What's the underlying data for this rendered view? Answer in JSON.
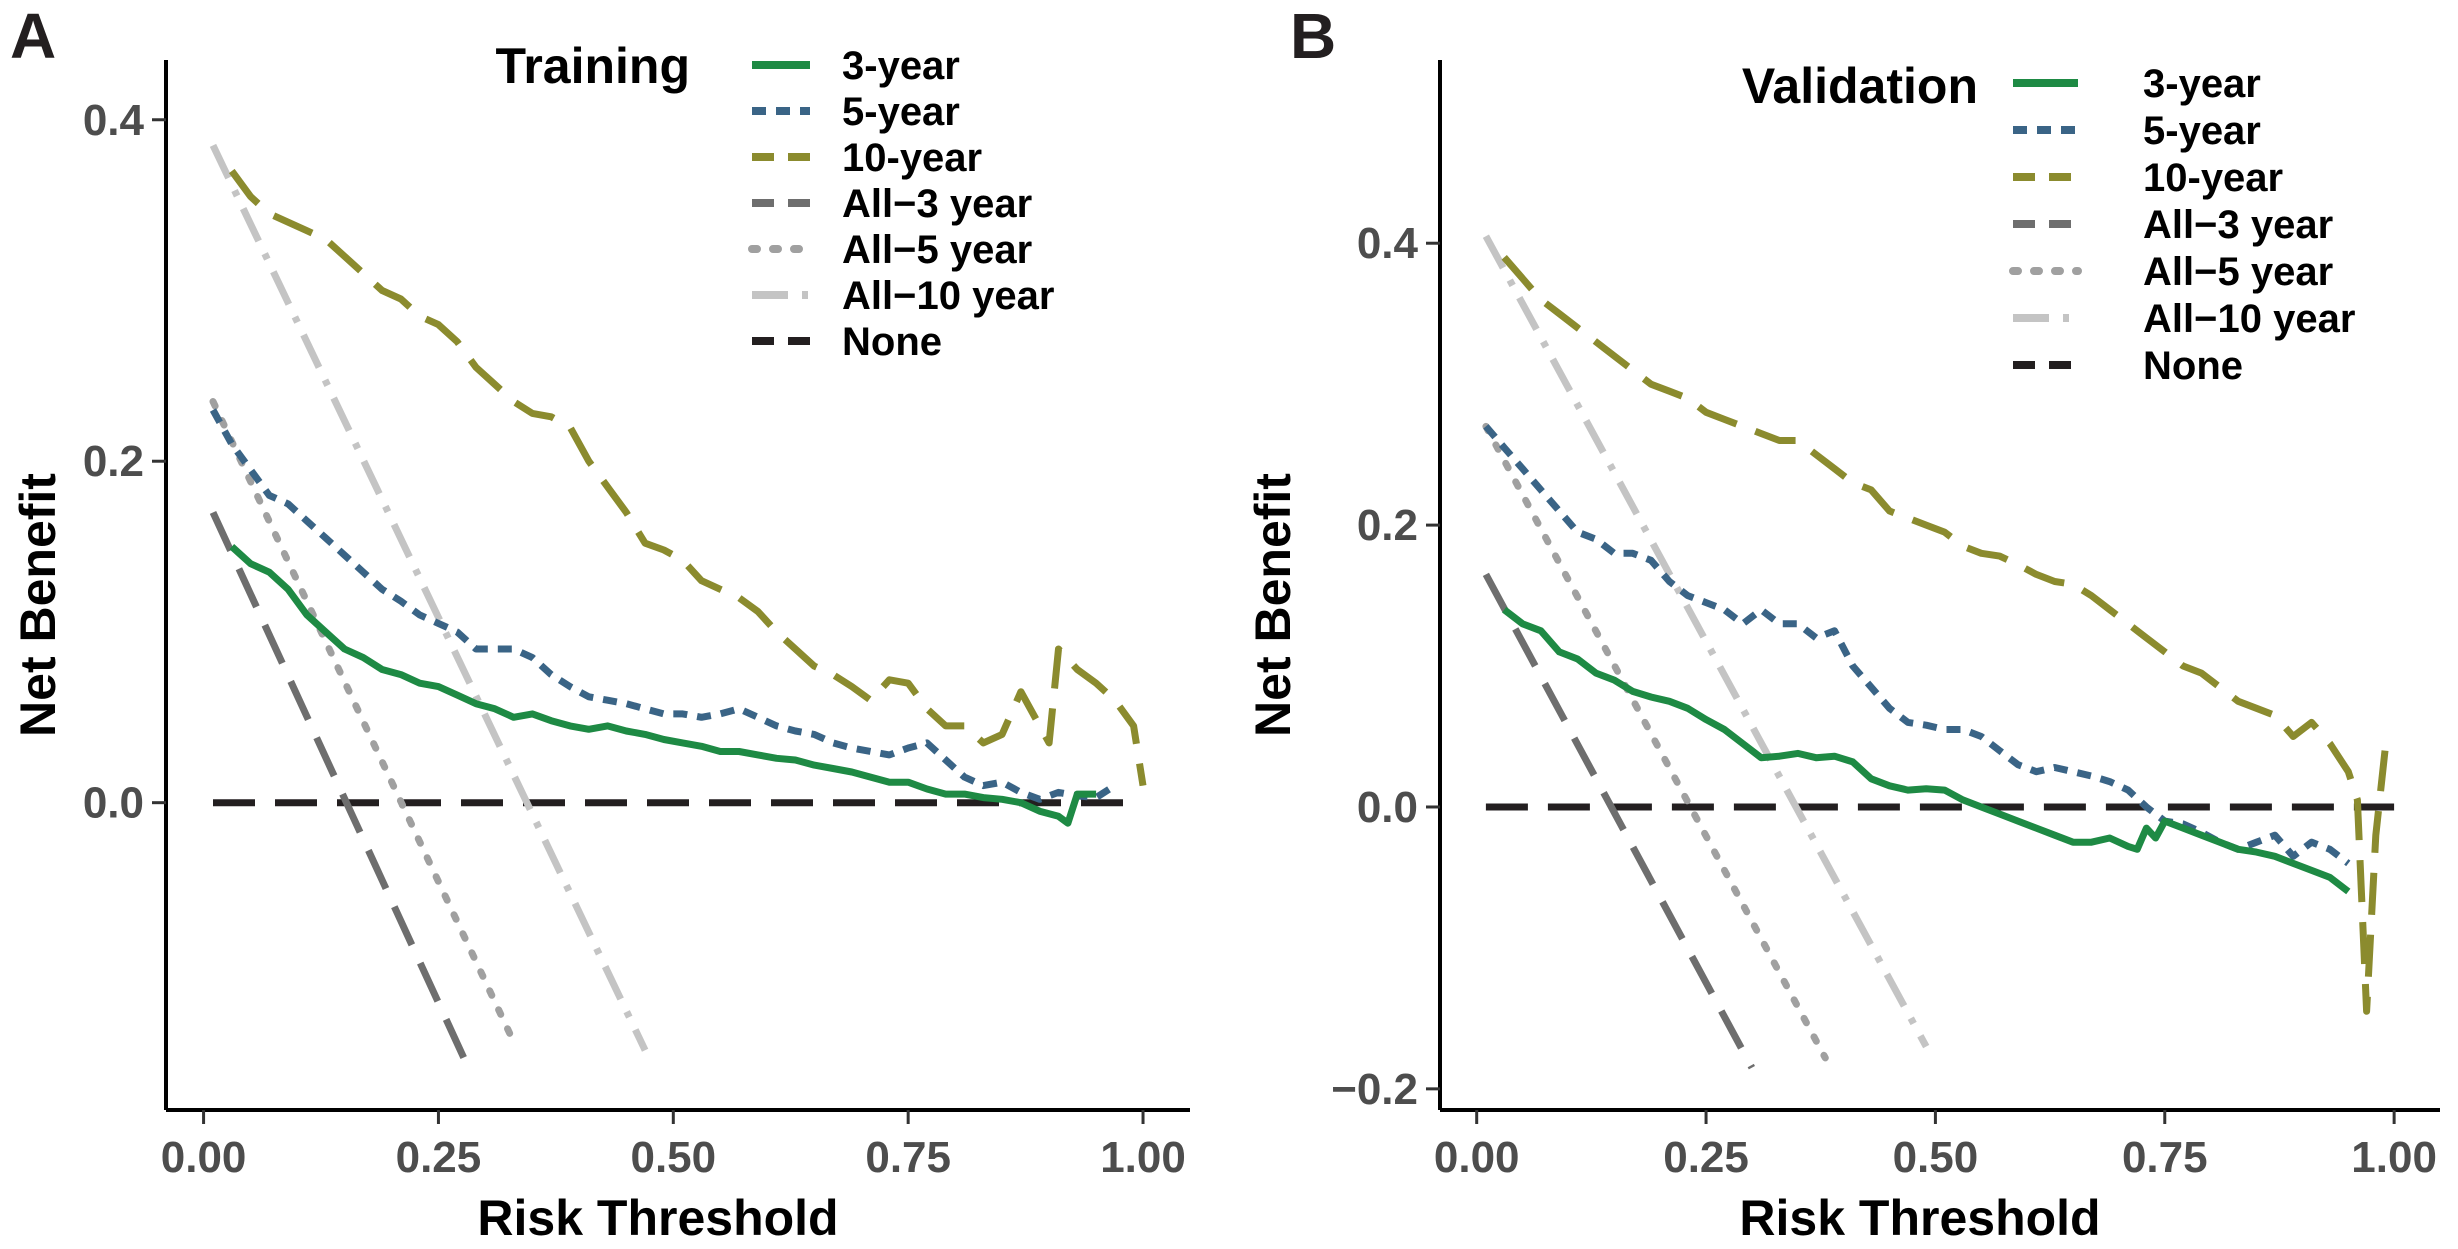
{
  "chart_data": [
    {
      "type": "line",
      "panel": "A",
      "title": "Training",
      "xlabel": "Risk Threshold",
      "ylabel": "Net Benefit",
      "xlim": [
        -0.04,
        1.05
      ],
      "ylim": [
        -0.18,
        0.435
      ],
      "xticks": [
        0,
        0.25,
        0.5,
        0.75,
        1
      ],
      "xtick_labels": [
        "0.00",
        "0.25",
        "0.50",
        "0.75",
        "1.00"
      ],
      "yticks": [
        0,
        0.2,
        0.4
      ],
      "ytick_labels": [
        "0.0",
        "0.2",
        "0.4"
      ],
      "legend_position": "top-right",
      "series": [
        {
          "name": "3-year",
          "style": "solid",
          "color": "#1e8a44",
          "x": [
            0.03,
            0.05,
            0.07,
            0.09,
            0.11,
            0.13,
            0.15,
            0.17,
            0.19,
            0.21,
            0.23,
            0.25,
            0.27,
            0.29,
            0.31,
            0.33,
            0.35,
            0.37,
            0.39,
            0.41,
            0.43,
            0.45,
            0.47,
            0.49,
            0.51,
            0.53,
            0.55,
            0.57,
            0.59,
            0.61,
            0.63,
            0.65,
            0.67,
            0.69,
            0.71,
            0.73,
            0.75,
            0.77,
            0.79,
            0.81,
            0.83,
            0.85,
            0.87,
            0.89,
            0.91,
            0.92,
            0.93,
            0.95
          ],
          "y": [
            0.15,
            0.14,
            0.135,
            0.125,
            0.11,
            0.1,
            0.09,
            0.085,
            0.078,
            0.075,
            0.07,
            0.068,
            0.063,
            0.058,
            0.055,
            0.05,
            0.052,
            0.048,
            0.045,
            0.043,
            0.045,
            0.042,
            0.04,
            0.037,
            0.035,
            0.033,
            0.03,
            0.03,
            0.028,
            0.026,
            0.025,
            0.022,
            0.02,
            0.018,
            0.015,
            0.012,
            0.012,
            0.008,
            0.005,
            0.005,
            0.003,
            0.002,
            0.0,
            -0.005,
            -0.008,
            -0.012,
            0.005,
            0.005
          ]
        },
        {
          "name": "5-year",
          "style": "short-dash",
          "color": "#3a6486",
          "x": [
            0.01,
            0.03,
            0.05,
            0.07,
            0.09,
            0.11,
            0.13,
            0.15,
            0.17,
            0.19,
            0.21,
            0.23,
            0.25,
            0.27,
            0.29,
            0.31,
            0.33,
            0.35,
            0.37,
            0.39,
            0.41,
            0.43,
            0.45,
            0.47,
            0.49,
            0.51,
            0.53,
            0.55,
            0.57,
            0.59,
            0.61,
            0.63,
            0.65,
            0.67,
            0.69,
            0.71,
            0.73,
            0.75,
            0.77,
            0.79,
            0.81,
            0.83,
            0.85,
            0.87,
            0.89,
            0.91,
            0.93,
            0.95,
            0.97
          ],
          "y": [
            0.23,
            0.21,
            0.195,
            0.18,
            0.175,
            0.165,
            0.155,
            0.145,
            0.135,
            0.125,
            0.118,
            0.11,
            0.105,
            0.1,
            0.09,
            0.09,
            0.09,
            0.085,
            0.075,
            0.068,
            0.062,
            0.06,
            0.058,
            0.055,
            0.052,
            0.052,
            0.05,
            0.052,
            0.055,
            0.05,
            0.045,
            0.042,
            0.04,
            0.035,
            0.032,
            0.03,
            0.028,
            0.032,
            0.035,
            0.025,
            0.015,
            0.01,
            0.012,
            0.006,
            0.002,
            0.006,
            0.004,
            0.003,
            0.01
          ]
        },
        {
          "name": "10-year",
          "style": "long-dash",
          "color": "#8b8b2e",
          "x": [
            0.03,
            0.05,
            0.07,
            0.09,
            0.11,
            0.13,
            0.15,
            0.17,
            0.19,
            0.21,
            0.23,
            0.25,
            0.27,
            0.29,
            0.31,
            0.33,
            0.35,
            0.37,
            0.39,
            0.41,
            0.43,
            0.45,
            0.47,
            0.49,
            0.51,
            0.53,
            0.55,
            0.57,
            0.59,
            0.61,
            0.63,
            0.65,
            0.67,
            0.69,
            0.71,
            0.73,
            0.75,
            0.77,
            0.79,
            0.81,
            0.83,
            0.85,
            0.87,
            0.89,
            0.9,
            0.91,
            0.93,
            0.95,
            0.97,
            0.99,
            1.0
          ],
          "y": [
            0.37,
            0.355,
            0.345,
            0.34,
            0.335,
            0.33,
            0.32,
            0.31,
            0.3,
            0.295,
            0.285,
            0.28,
            0.27,
            0.255,
            0.245,
            0.235,
            0.228,
            0.226,
            0.22,
            0.2,
            0.185,
            0.17,
            0.152,
            0.148,
            0.142,
            0.13,
            0.125,
            0.12,
            0.112,
            0.1,
            0.09,
            0.08,
            0.075,
            0.068,
            0.06,
            0.072,
            0.07,
            0.055,
            0.045,
            0.045,
            0.035,
            0.04,
            0.065,
            0.045,
            0.035,
            0.09,
            0.078,
            0.07,
            0.06,
            0.045,
            0.01
          ]
        },
        {
          "name": "All−3 year",
          "style": "long-dash",
          "color": "#6e6e6e",
          "x": [
            0.01,
            0.28
          ],
          "y": [
            0.17,
            -0.153
          ]
        },
        {
          "name": "All−5 year",
          "style": "dotted",
          "color": "#a0a0a0",
          "x": [
            0.01,
            0.33
          ],
          "y": [
            0.235,
            -0.14
          ]
        },
        {
          "name": "All−10 year",
          "style": "dash-dot",
          "color": "#c4c4c4",
          "x": [
            0.01,
            0.47
          ],
          "y": [
            0.385,
            -0.145
          ]
        },
        {
          "name": "None",
          "style": "long-dash",
          "color": "#231f20",
          "x": [
            0.01,
            1.0
          ],
          "y": [
            0.0,
            0.0
          ]
        }
      ]
    },
    {
      "type": "line",
      "panel": "B",
      "title": "Validation",
      "xlabel": "Risk Threshold",
      "ylabel": "Net Benefit",
      "xlim": [
        -0.04,
        1.05
      ],
      "ylim": [
        -0.215,
        0.53
      ],
      "xticks": [
        0,
        0.25,
        0.5,
        0.75,
        1
      ],
      "xtick_labels": [
        "0.00",
        "0.25",
        "0.50",
        "0.75",
        "1.00"
      ],
      "yticks": [
        -0.2,
        0,
        0.2,
        0.4
      ],
      "ytick_labels": [
        "−0.2",
        "0.0",
        "0.2",
        "0.4"
      ],
      "legend_position": "top-right",
      "series": [
        {
          "name": "3-year",
          "style": "solid",
          "color": "#1e8a44",
          "x": [
            0.03,
            0.05,
            0.07,
            0.09,
            0.11,
            0.13,
            0.15,
            0.17,
            0.19,
            0.21,
            0.23,
            0.25,
            0.27,
            0.29,
            0.31,
            0.33,
            0.35,
            0.37,
            0.39,
            0.41,
            0.43,
            0.45,
            0.47,
            0.49,
            0.51,
            0.53,
            0.55,
            0.57,
            0.59,
            0.61,
            0.63,
            0.65,
            0.67,
            0.69,
            0.71,
            0.72,
            0.73,
            0.74,
            0.75,
            0.77,
            0.79,
            0.81,
            0.83,
            0.85,
            0.87,
            0.89,
            0.91,
            0.93,
            0.95
          ],
          "y": [
            0.14,
            0.13,
            0.125,
            0.11,
            0.105,
            0.095,
            0.09,
            0.082,
            0.078,
            0.075,
            0.07,
            0.062,
            0.055,
            0.045,
            0.035,
            0.036,
            0.038,
            0.035,
            0.036,
            0.032,
            0.02,
            0.015,
            0.012,
            0.013,
            0.012,
            0.005,
            0.0,
            -0.005,
            -0.01,
            -0.015,
            -0.02,
            -0.025,
            -0.025,
            -0.022,
            -0.028,
            -0.03,
            -0.015,
            -0.022,
            -0.01,
            -0.015,
            -0.02,
            -0.025,
            -0.03,
            -0.032,
            -0.035,
            -0.04,
            -0.045,
            -0.05,
            -0.06
          ]
        },
        {
          "name": "5-year",
          "style": "short-dash",
          "color": "#3a6486",
          "x": [
            0.01,
            0.03,
            0.05,
            0.07,
            0.09,
            0.11,
            0.13,
            0.15,
            0.17,
            0.19,
            0.21,
            0.23,
            0.25,
            0.27,
            0.29,
            0.31,
            0.33,
            0.35,
            0.37,
            0.39,
            0.41,
            0.43,
            0.45,
            0.47,
            0.49,
            0.51,
            0.53,
            0.55,
            0.57,
            0.59,
            0.61,
            0.63,
            0.65,
            0.67,
            0.69,
            0.71,
            0.73,
            0.75,
            0.77,
            0.79,
            0.81,
            0.83,
            0.85,
            0.87,
            0.89,
            0.91,
            0.93,
            0.95
          ],
          "y": [
            0.27,
            0.255,
            0.24,
            0.225,
            0.21,
            0.195,
            0.19,
            0.18,
            0.18,
            0.175,
            0.16,
            0.15,
            0.145,
            0.14,
            0.13,
            0.14,
            0.13,
            0.13,
            0.12,
            0.125,
            0.1,
            0.085,
            0.07,
            0.06,
            0.058,
            0.055,
            0.055,
            0.05,
            0.04,
            0.03,
            0.025,
            0.028,
            0.025,
            0.022,
            0.018,
            0.012,
            0.0,
            -0.01,
            -0.012,
            -0.018,
            -0.025,
            -0.03,
            -0.025,
            -0.02,
            -0.035,
            -0.025,
            -0.03,
            -0.04
          ]
        },
        {
          "name": "10-year",
          "style": "long-dash",
          "color": "#8b8b2e",
          "x": [
            0.03,
            0.05,
            0.07,
            0.09,
            0.11,
            0.13,
            0.15,
            0.17,
            0.19,
            0.21,
            0.23,
            0.25,
            0.27,
            0.29,
            0.31,
            0.33,
            0.35,
            0.37,
            0.39,
            0.41,
            0.43,
            0.45,
            0.47,
            0.49,
            0.51,
            0.53,
            0.55,
            0.57,
            0.59,
            0.61,
            0.63,
            0.65,
            0.67,
            0.69,
            0.71,
            0.73,
            0.75,
            0.77,
            0.79,
            0.81,
            0.83,
            0.85,
            0.87,
            0.89,
            0.91,
            0.93,
            0.95,
            0.96,
            0.97,
            0.98,
            0.99
          ],
          "y": [
            0.39,
            0.375,
            0.36,
            0.35,
            0.34,
            0.33,
            0.32,
            0.31,
            0.3,
            0.295,
            0.29,
            0.28,
            0.275,
            0.27,
            0.265,
            0.26,
            0.26,
            0.25,
            0.24,
            0.23,
            0.225,
            0.21,
            0.205,
            0.2,
            0.195,
            0.185,
            0.18,
            0.178,
            0.172,
            0.165,
            0.16,
            0.158,
            0.15,
            0.14,
            0.13,
            0.12,
            0.11,
            0.1,
            0.095,
            0.085,
            0.075,
            0.07,
            0.065,
            0.05,
            0.06,
            0.045,
            0.025,
            0.005,
            -0.145,
            -0.02,
            0.04
          ]
        },
        {
          "name": "All−3 year",
          "style": "long-dash",
          "color": "#6e6e6e",
          "x": [
            0.01,
            0.3
          ],
          "y": [
            0.165,
            -0.185
          ]
        },
        {
          "name": "All−5 year",
          "style": "dotted",
          "color": "#a0a0a0",
          "x": [
            0.01,
            0.38
          ],
          "y": [
            0.27,
            -0.178
          ]
        },
        {
          "name": "All−10 year",
          "style": "dash-dot",
          "color": "#c4c4c4",
          "x": [
            0.01,
            0.49
          ],
          "y": [
            0.405,
            -0.17
          ]
        },
        {
          "name": "None",
          "style": "long-dash",
          "color": "#231f20",
          "x": [
            0.01,
            1.0
          ],
          "y": [
            0.0,
            0.0
          ]
        }
      ]
    }
  ]
}
